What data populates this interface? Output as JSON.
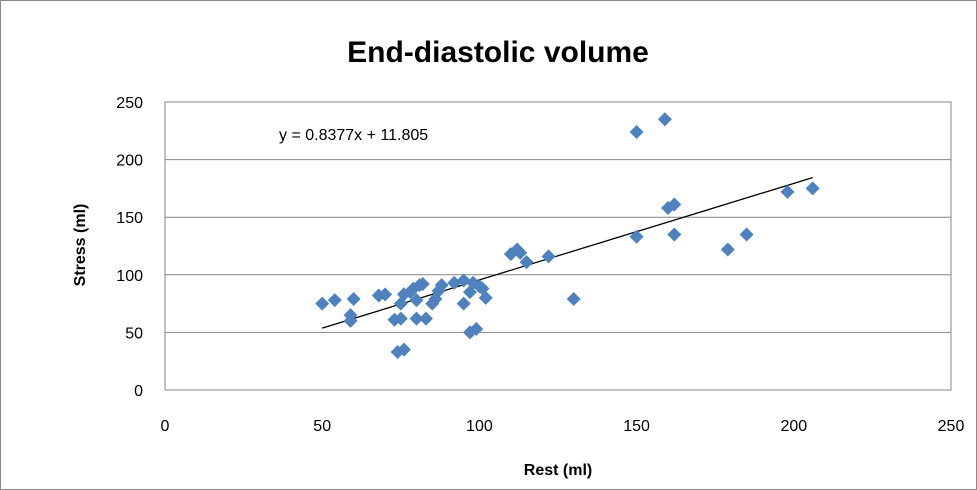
{
  "chart_data": {
    "type": "scatter",
    "title": "End-diastolic volume",
    "xlabel": "Rest (ml)",
    "ylabel": "Stress (ml)",
    "xlim": [
      0,
      250
    ],
    "ylim": [
      0,
      250
    ],
    "xticks": [
      0,
      50,
      100,
      150,
      200,
      250
    ],
    "yticks": [
      0,
      50,
      100,
      150,
      200,
      250
    ],
    "grid": "horizontal",
    "legend": "none",
    "marker": "diamond",
    "marker_color": "#4F81BD",
    "trendline": {
      "equation_label": "y = 0.8377x + 11.805",
      "slope": 0.8377,
      "intercept": 11.805,
      "x_range": [
        50,
        206
      ],
      "color": "#000000"
    },
    "points": [
      [
        50,
        75
      ],
      [
        54,
        78
      ],
      [
        59,
        65
      ],
      [
        59,
        60
      ],
      [
        60,
        79
      ],
      [
        68,
        82
      ],
      [
        70,
        83
      ],
      [
        73,
        61
      ],
      [
        75,
        62
      ],
      [
        75,
        75
      ],
      [
        76,
        83
      ],
      [
        74,
        33
      ],
      [
        76,
        35
      ],
      [
        78,
        85
      ],
      [
        79,
        88
      ],
      [
        80,
        78
      ],
      [
        80,
        62
      ],
      [
        81,
        91
      ],
      [
        82,
        92
      ],
      [
        83,
        62
      ],
      [
        85,
        75
      ],
      [
        86,
        79
      ],
      [
        87,
        86
      ],
      [
        88,
        91
      ],
      [
        92,
        93
      ],
      [
        95,
        95
      ],
      [
        95,
        75
      ],
      [
        97,
        50
      ],
      [
        97,
        85
      ],
      [
        98,
        93
      ],
      [
        99,
        53
      ],
      [
        100,
        90
      ],
      [
        101,
        88
      ],
      [
        102,
        80
      ],
      [
        110,
        118
      ],
      [
        112,
        122
      ],
      [
        113,
        119
      ],
      [
        115,
        111
      ],
      [
        122,
        116
      ],
      [
        130,
        79
      ],
      [
        150,
        224
      ],
      [
        150,
        133
      ],
      [
        159,
        235
      ],
      [
        160,
        158
      ],
      [
        162,
        161
      ],
      [
        162,
        135
      ],
      [
        179,
        122
      ],
      [
        185,
        135
      ],
      [
        198,
        172
      ],
      [
        206,
        175
      ]
    ]
  }
}
